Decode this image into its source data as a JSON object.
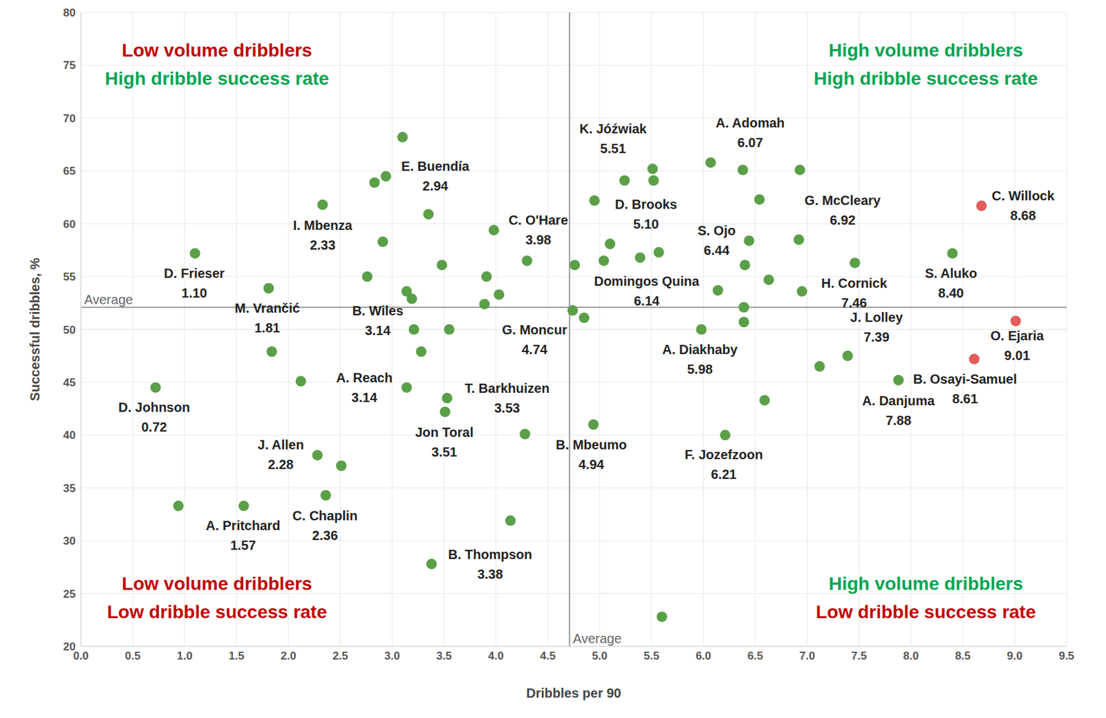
{
  "chart_data": {
    "type": "scatter",
    "x_label": "Dribbles per 90",
    "y_label": "Successful dribbles, %",
    "x": [
      0.72,
      0.94,
      1.1,
      1.57,
      1.81,
      1.84,
      2.12,
      2.28,
      2.33,
      2.36,
      2.51,
      2.76,
      2.83,
      2.91,
      2.94,
      3.1,
      3.14,
      3.14,
      3.19,
      3.21,
      3.28,
      3.35,
      3.38,
      3.48,
      3.51,
      3.53,
      3.55,
      3.89,
      3.91,
      3.98,
      4.03,
      4.14,
      4.28,
      4.3,
      4.74,
      4.76,
      4.85,
      4.94,
      4.95,
      5.04,
      5.1,
      5.24,
      5.39,
      5.51,
      5.52,
      5.57,
      5.6,
      5.98,
      6.07,
      6.14,
      6.21,
      6.38,
      6.39,
      6.39,
      6.4,
      6.44,
      6.54,
      6.59,
      6.63,
      6.92,
      6.93,
      6.95,
      7.12,
      7.39,
      7.46,
      7.88,
      8.4,
      8.61,
      8.68,
      9.01
    ],
    "y": [
      44.5,
      33.3,
      57.2,
      33.3,
      53.9,
      47.9,
      45.1,
      38.1,
      61.8,
      34.3,
      37.1,
      55.0,
      63.9,
      58.3,
      64.5,
      68.2,
      53.6,
      44.5,
      52.9,
      50.0,
      47.9,
      60.9,
      27.8,
      56.1,
      42.2,
      43.5,
      50.0,
      52.4,
      55.0,
      59.4,
      53.3,
      31.9,
      40.1,
      56.5,
      51.8,
      56.1,
      51.1,
      41.0,
      62.2,
      56.5,
      58.1,
      64.1,
      56.8,
      65.2,
      64.1,
      57.3,
      22.8,
      50.0,
      65.8,
      53.7,
      40.0,
      65.1,
      52.1,
      50.7,
      56.1,
      58.4,
      62.3,
      43.3,
      54.7,
      58.5,
      65.1,
      53.6,
      46.5,
      47.5,
      56.3,
      45.2,
      57.2,
      47.2,
      61.7,
      50.8
    ],
    "labels": [
      "D. Johnson",
      null,
      "D. Frieser",
      "A. Pritchard",
      "M. Vrančić",
      null,
      null,
      "J. Allen",
      "I. Mbenza",
      "C. Chaplin",
      null,
      null,
      null,
      null,
      "E. Buendía",
      null,
      "B. Wiles",
      "A. Reach",
      null,
      null,
      null,
      null,
      "B. Thompson",
      null,
      "Jon Toral",
      "T. Barkhuizen",
      null,
      null,
      null,
      "C. O'Hare",
      null,
      null,
      null,
      null,
      "G. Moncur",
      null,
      null,
      "B. Mbeumo",
      null,
      null,
      "D. Brooks",
      null,
      null,
      "K. Jóźwiak",
      null,
      null,
      null,
      "A. Diakhaby",
      "A. Adomah",
      "Domingos Quina",
      "F. Jozefzoon",
      null,
      null,
      null,
      null,
      "S. Ojo",
      null,
      null,
      null,
      "G. McCleary",
      null,
      null,
      null,
      "J. Lolley",
      "H. Cornick",
      "A. Danjuma",
      "S. Aluko",
      "B. Osayi-Samuel",
      "C. Willock",
      "O. Ejaria"
    ],
    "value_labels": [
      "0.72",
      null,
      "1.10",
      "1.57",
      "1.81",
      null,
      null,
      "2.28",
      "2.33",
      "2.36",
      null,
      null,
      null,
      null,
      "2.94",
      null,
      "3.14",
      "3.14",
      null,
      null,
      null,
      null,
      "3.38",
      null,
      "3.51",
      "3.53",
      null,
      null,
      null,
      "3.98",
      null,
      null,
      null,
      null,
      "4.74",
      null,
      null,
      "4.94",
      null,
      null,
      "5.10",
      null,
      null,
      "5.51",
      null,
      null,
      null,
      "5.98",
      "6.07",
      "6.14",
      "6.21",
      null,
      null,
      null,
      null,
      "6.44",
      null,
      null,
      null,
      "6.92",
      null,
      null,
      null,
      "7.39",
      "7.46",
      "7.88",
      "8.40",
      "8.61",
      "8.68",
      "9.01"
    ],
    "colors": [
      "#5b9f49",
      "#5b9f49",
      "#5b9f49",
      "#5b9f49",
      "#5b9f49",
      "#5b9f49",
      "#5b9f49",
      "#5b9f49",
      "#5b9f49",
      "#5b9f49",
      "#5b9f49",
      "#5b9f49",
      "#5b9f49",
      "#5b9f49",
      "#5b9f49",
      "#5b9f49",
      "#5b9f49",
      "#5b9f49",
      "#5b9f49",
      "#5b9f49",
      "#5b9f49",
      "#5b9f49",
      "#5b9f49",
      "#5b9f49",
      "#5b9f49",
      "#5b9f49",
      "#5b9f49",
      "#5b9f49",
      "#5b9f49",
      "#5b9f49",
      "#5b9f49",
      "#5b9f49",
      "#5b9f49",
      "#5b9f49",
      "#5b9f49",
      "#5b9f49",
      "#5b9f49",
      "#5b9f49",
      "#5b9f49",
      "#5b9f49",
      "#5b9f49",
      "#5b9f49",
      "#5b9f49",
      "#5b9f49",
      "#5b9f49",
      "#5b9f49",
      "#5b9f49",
      "#5b9f49",
      "#5b9f49",
      "#5b9f49",
      "#5b9f49",
      "#5b9f49",
      "#5b9f49",
      "#5b9f49",
      "#5b9f49",
      "#5b9f49",
      "#5b9f49",
      "#5b9f49",
      "#5b9f49",
      "#5b9f49",
      "#5b9f49",
      "#5b9f49",
      "#5b9f49",
      "#5b9f49",
      "#5b9f49",
      "#5b9f49",
      "#5b9f49",
      "#e35b5b",
      "#e35b5b",
      "#e35b5b"
    ],
    "xlim": [
      0,
      9.5
    ],
    "xticks": [
      {
        "value": 0,
        "label": "0.0"
      },
      0.5,
      {
        "value": 1,
        "label": "1.0"
      },
      1.5,
      {
        "value": 2,
        "label": "2.0"
      },
      2.5,
      {
        "value": 3,
        "label": "3.0"
      },
      3.5,
      {
        "value": 4,
        "label": "4.0"
      },
      4.5,
      {
        "value": 5,
        "label": "5.0"
      },
      5.5,
      {
        "value": 6,
        "label": "6.0"
      },
      6.5,
      {
        "value": 7,
        "label": "7.0"
      },
      7.5,
      {
        "value": 8,
        "label": "8.0"
      },
      8.5,
      {
        "value": 9,
        "label": "9.0"
      },
      9.5
    ],
    "ylim": [
      20,
      80
    ],
    "yticks": [
      20,
      25,
      30,
      35,
      40,
      45,
      50,
      55,
      60,
      65,
      70,
      75,
      80
    ],
    "grid": true,
    "data_labels": true,
    "reference_lines": [
      {
        "axis": "x",
        "value": 4.71,
        "label": "Average"
      },
      {
        "axis": "y",
        "value": 52.1,
        "label": "Average"
      }
    ],
    "annotations": [
      {
        "lines": [
          "Low volume dribblers",
          "High dribble success rate"
        ],
        "colors": [
          "#c00000",
          "#00a550"
        ]
      },
      {
        "lines": [
          "High volume dribblers",
          "High dribble success rate"
        ],
        "colors": [
          "#00a550",
          "#00a550"
        ]
      },
      {
        "lines": [
          "Low volume dribblers",
          "Low dribble success rate"
        ],
        "colors": [
          "#c00000",
          "#c00000"
        ]
      },
      {
        "lines": [
          "High volume dribblers",
          "Low dribble success rate"
        ],
        "colors": [
          "#00a550",
          "#c00000"
        ]
      }
    ]
  }
}
